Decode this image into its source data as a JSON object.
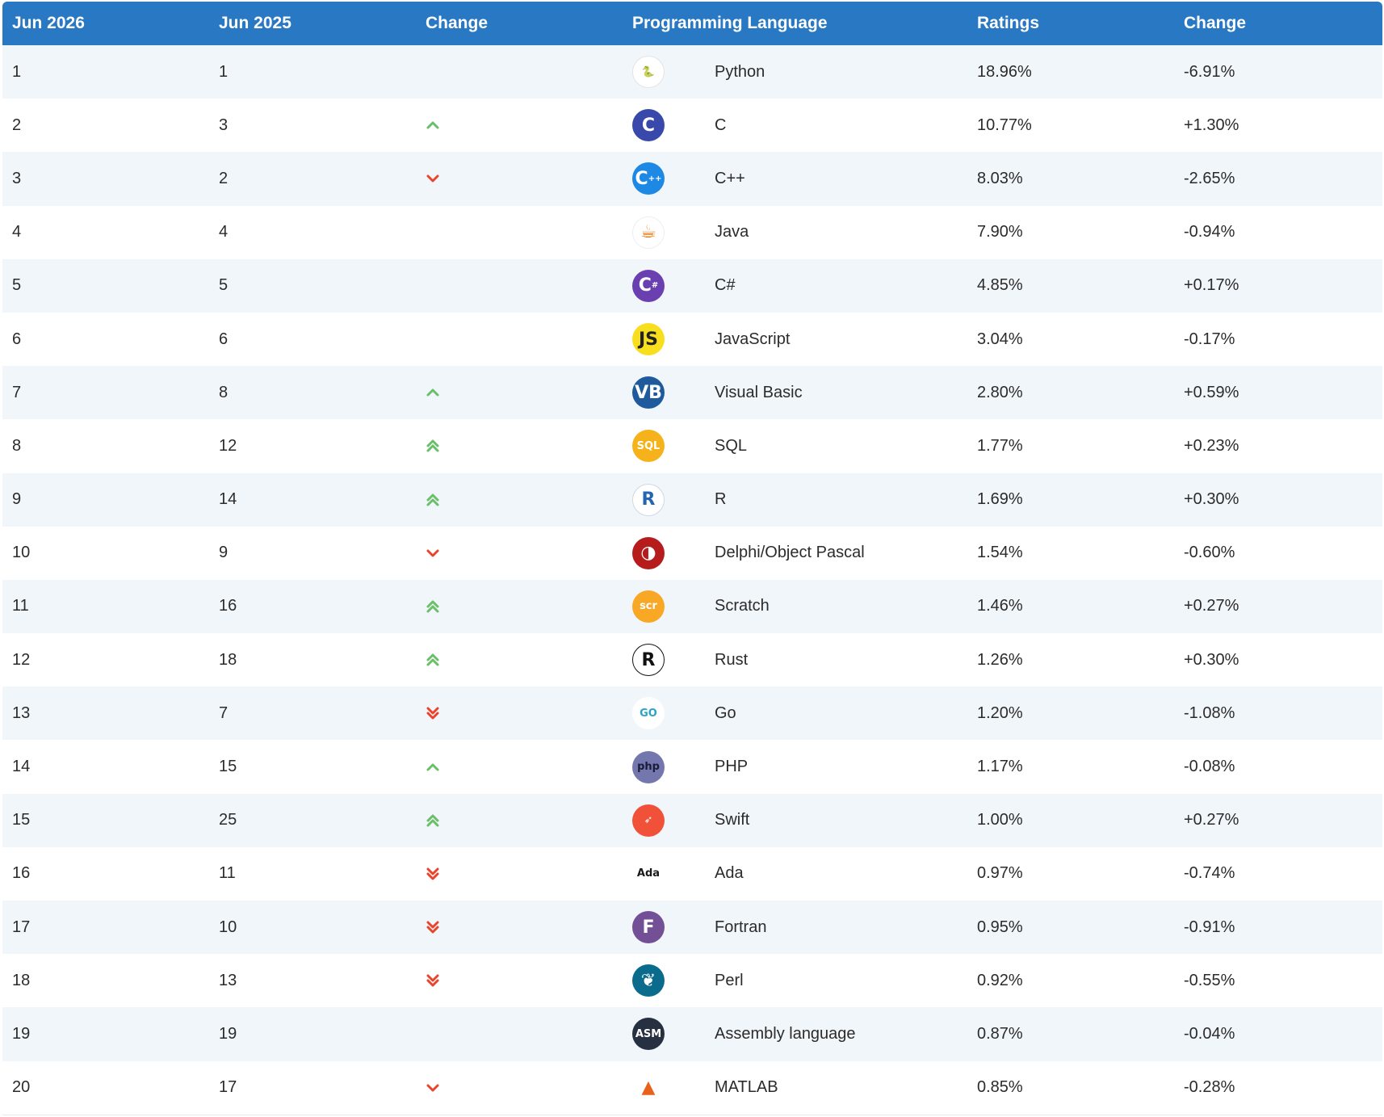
{
  "header": {
    "col_current": "Jun 2026",
    "col_previous": "Jun 2025",
    "col_change": "Change",
    "col_language": "Programming Language",
    "col_ratings": "Ratings",
    "col_change_pct": "Change"
  },
  "colors": {
    "header_bg": "#2878c3",
    "up": "#6abf69",
    "down": "#e8452c",
    "row_alt": "#f1f6fb"
  },
  "rows": [
    {
      "rank": "1",
      "prev": "1",
      "trend": "none",
      "icon": "python-logo-icon",
      "language": "Python",
      "rating": "18.96%",
      "change": "-6.91%"
    },
    {
      "rank": "2",
      "prev": "3",
      "trend": "up",
      "icon": "c-logo-icon",
      "language": "C",
      "rating": "10.77%",
      "change": "+1.30%"
    },
    {
      "rank": "3",
      "prev": "2",
      "trend": "down",
      "icon": "cpp-logo-icon",
      "language": "C++",
      "rating": "8.03%",
      "change": "-2.65%"
    },
    {
      "rank": "4",
      "prev": "4",
      "trend": "none",
      "icon": "java-logo-icon",
      "language": "Java",
      "rating": "7.90%",
      "change": "-0.94%"
    },
    {
      "rank": "5",
      "prev": "5",
      "trend": "none",
      "icon": "csharp-logo-icon",
      "language": "C#",
      "rating": "4.85%",
      "change": "+0.17%"
    },
    {
      "rank": "6",
      "prev": "6",
      "trend": "none",
      "icon": "javascript-logo-icon",
      "language": "JavaScript",
      "rating": "3.04%",
      "change": "-0.17%"
    },
    {
      "rank": "7",
      "prev": "8",
      "trend": "up",
      "icon": "visual-basic-logo-icon",
      "language": "Visual Basic",
      "rating": "2.80%",
      "change": "+0.59%"
    },
    {
      "rank": "8",
      "prev": "12",
      "trend": "up2",
      "icon": "sql-logo-icon",
      "language": "SQL",
      "rating": "1.77%",
      "change": "+0.23%"
    },
    {
      "rank": "9",
      "prev": "14",
      "trend": "up2",
      "icon": "r-logo-icon",
      "language": "R",
      "rating": "1.69%",
      "change": "+0.30%"
    },
    {
      "rank": "10",
      "prev": "9",
      "trend": "down",
      "icon": "delphi-logo-icon",
      "language": "Delphi/Object Pascal",
      "rating": "1.54%",
      "change": "-0.60%"
    },
    {
      "rank": "11",
      "prev": "16",
      "trend": "up2",
      "icon": "scratch-logo-icon",
      "language": "Scratch",
      "rating": "1.46%",
      "change": "+0.27%"
    },
    {
      "rank": "12",
      "prev": "18",
      "trend": "up2",
      "icon": "rust-logo-icon",
      "language": "Rust",
      "rating": "1.26%",
      "change": "+0.30%"
    },
    {
      "rank": "13",
      "prev": "7",
      "trend": "down2",
      "icon": "go-logo-icon",
      "language": "Go",
      "rating": "1.20%",
      "change": "-1.08%"
    },
    {
      "rank": "14",
      "prev": "15",
      "trend": "up",
      "icon": "php-logo-icon",
      "language": "PHP",
      "rating": "1.17%",
      "change": "-0.08%"
    },
    {
      "rank": "15",
      "prev": "25",
      "trend": "up2",
      "icon": "swift-logo-icon",
      "language": "Swift",
      "rating": "1.00%",
      "change": "+0.27%"
    },
    {
      "rank": "16",
      "prev": "11",
      "trend": "down2",
      "icon": "ada-logo-icon",
      "language": "Ada",
      "rating": "0.97%",
      "change": "-0.74%"
    },
    {
      "rank": "17",
      "prev": "10",
      "trend": "down2",
      "icon": "fortran-logo-icon",
      "language": "Fortran",
      "rating": "0.95%",
      "change": "-0.91%"
    },
    {
      "rank": "18",
      "prev": "13",
      "trend": "down2",
      "icon": "perl-logo-icon",
      "language": "Perl",
      "rating": "0.92%",
      "change": "-0.55%"
    },
    {
      "rank": "19",
      "prev": "19",
      "trend": "none",
      "icon": "assembly-logo-icon",
      "language": "Assembly language",
      "rating": "0.87%",
      "change": "-0.04%"
    },
    {
      "rank": "20",
      "prev": "17",
      "trend": "down",
      "icon": "matlab-logo-icon",
      "language": "MATLAB",
      "rating": "0.85%",
      "change": "-0.28%"
    }
  ]
}
